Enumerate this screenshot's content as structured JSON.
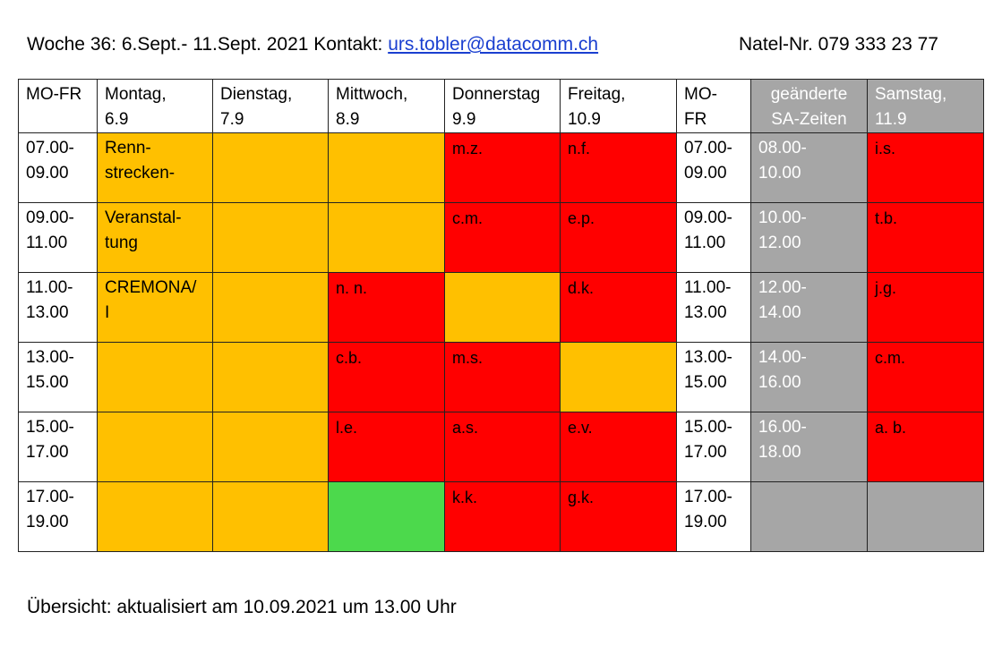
{
  "header": {
    "week": "Woche 36: 6.Sept.- 11.Sept. 2021",
    "contact_label": "Kontakt:",
    "email": "urs.tobler@datacomm.ch",
    "phone": "Natel-Nr. 079 333 23 77"
  },
  "table": {
    "columns": {
      "c0": "MO-FR",
      "c1": "Montag,\n6.9",
      "c2": "Dienstag,\n7.9",
      "c3": "Mittwoch,\n8.9",
      "c4": "Donnerstag\n9.9",
      "c5": "Freitag,\n10.9",
      "c6": "MO-\nFR",
      "c7": "geänderte\nSA-Zeiten",
      "c8": "Samstag,\n11.9"
    },
    "rows": [
      {
        "time": "07.00-\n09.00",
        "montag": "Renn-\nstrecken-",
        "dienstag": "",
        "mittwoch": "",
        "donnerstag": "m.z.",
        "freitag": "n.f.",
        "time2": "07.00-\n09.00",
        "sa_time": "08.00-\n10.00",
        "samstag": "i.s."
      },
      {
        "time": "09.00-\n11.00",
        "montag": "Veranstal-\ntung",
        "dienstag": "",
        "mittwoch": "",
        "donnerstag": "c.m.",
        "freitag": "e.p.",
        "time2": "09.00-\n11.00",
        "sa_time": "10.00-\n12.00",
        "samstag": "t.b."
      },
      {
        "time": "11.00-\n13.00",
        "montag": "CREMONA/\nI",
        "dienstag": "",
        "mittwoch": "n. n.",
        "donnerstag": "",
        "freitag": "d.k.",
        "time2": "11.00-\n13.00",
        "sa_time": "12.00-\n14.00",
        "samstag": "j.g."
      },
      {
        "time": "13.00-\n15.00",
        "montag": "",
        "dienstag": "",
        "mittwoch": "c.b.",
        "donnerstag": "m.s.",
        "freitag": "",
        "time2": "13.00-\n15.00",
        "sa_time": "14.00-\n16.00",
        "samstag": "c.m."
      },
      {
        "time": "15.00-\n17.00",
        "montag": "",
        "dienstag": "",
        "mittwoch": "l.e.",
        "donnerstag": "a.s.",
        "freitag": "e.v.",
        "time2": "15.00-\n17.00",
        "sa_time": "16.00-\n18.00",
        "samstag": "a. b."
      },
      {
        "time": "17.00-\n19.00",
        "montag": "",
        "dienstag": "",
        "mittwoch": "",
        "donnerstag": "k.k.",
        "freitag": "g.k.",
        "time2": "17.00-\n19.00",
        "sa_time": "",
        "samstag": ""
      }
    ],
    "colors": {
      "orange": "#ffc000",
      "red": "#ff0000",
      "green": "#4cd94c",
      "grey": "#a6a6a6"
    }
  },
  "footer": {
    "text": "Übersicht: aktualisiert am 10.09.2021 um 13.00 Uhr"
  }
}
